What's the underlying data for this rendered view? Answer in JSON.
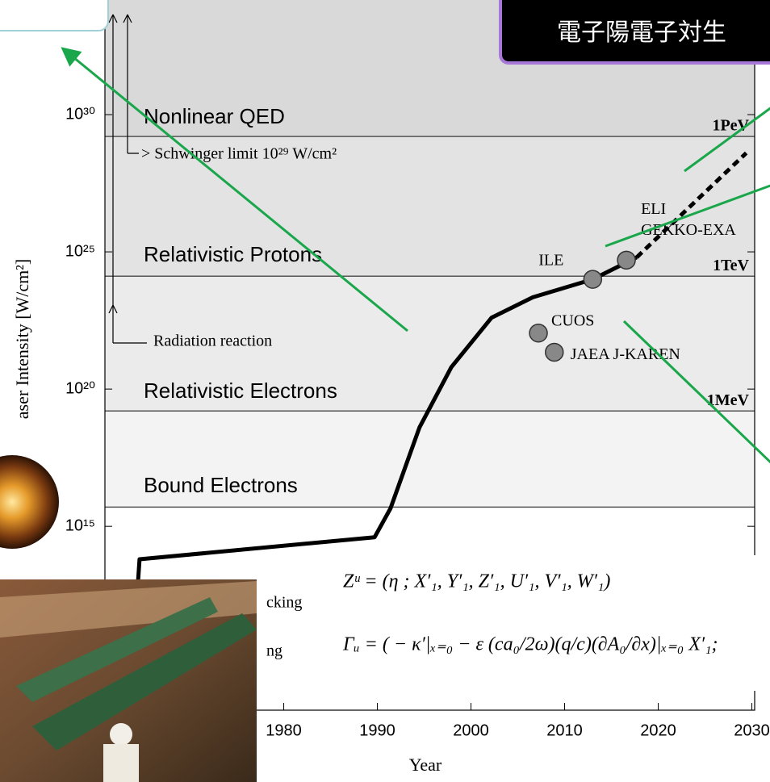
{
  "chart_data": {
    "type": "line",
    "log_y": true,
    "xlabel": "Year",
    "ylabel": "aser Intensity  [W/cm²]",
    "xlim": [
      1960.9,
      2030.3
    ],
    "xticks": [
      1980,
      1990,
      2000,
      2010,
      2020,
      2030
    ],
    "ylim": [
      200000000.0,
      1.5e+34
    ],
    "yticks": [
      {
        "value": 1000000000000000.0,
        "label": "10¹⁵"
      },
      {
        "value": 1e+20,
        "label": "10²⁰"
      },
      {
        "value": 1e+25,
        "label": "10²⁵"
      },
      {
        "value": 1e+30,
        "label": "10³⁰"
      }
    ],
    "boundaries": [
      {
        "value": 1.6e+29,
        "label": "1PeV"
      },
      {
        "value": 1.3e+24,
        "label": "1TeV"
      },
      {
        "value": 1.6e+19,
        "label": "1MeV"
      },
      {
        "value": 5000000000000000.0
      }
    ],
    "regions": [
      "Nonlinear QED",
      "Relativistic Protons",
      "Relativistic Electrons",
      "Bound Electrons"
    ],
    "region_colors": [
      "#d9d9d9",
      "#e3e3e3",
      "#ebebeb",
      "#f3f3f3",
      "#ffffff"
    ],
    "series": [
      {
        "color": "#000000",
        "style": "solid",
        "x": [
          1963.5,
          1964.6,
          1989.7,
          1991.4,
          1994.5,
          1997.9,
          2002.2,
          2006.6,
          2013.0,
          2017.7
        ],
        "values": [
          200000000.0,
          63000000000000.0,
          400000000000000.0,
          4500000000000000.0,
          4e+18,
          6.3e+20,
          4e+22,
          2.2e+23,
          1e+24,
          6.3e+24
        ]
      },
      {
        "color": "#000000",
        "style": "dashed",
        "x": [
          2017.7,
          2029.4
        ],
        "values": [
          6.3e+24,
          4e+28
        ]
      }
    ],
    "points": [
      {
        "lines": [
          "ILE"
        ],
        "x": 2013.0,
        "value": 1e+24
      },
      {
        "lines": [
          "ELI",
          "GEKKO-EXA"
        ],
        "x": 2016.6,
        "value": 5e+24
      },
      {
        "lines": [
          "CUOS"
        ],
        "x": 2007.2,
        "value": 1.1e+22
      },
      {
        "lines": [
          "JAEA J-KAREN"
        ],
        "x": 2008.9,
        "value": 2.2e+21
      }
    ],
    "point_color": "#888888",
    "annotations": [
      "> Schwinger limit 10²⁹ W/cm²",
      "Radiation reaction",
      "cking",
      "ng"
    ],
    "formulas": [
      "Zᵘ = (η ; X′₁, Y′₁, Z′₁, U′₁, V′₁, W′₁)",
      "Γᵤ = ( − κ′|ₓ₌₀ − ε (ca₀/2ω)(q/c)(∂A₀/∂x)|ₓ₌₀  X′₁;"
    ],
    "banner": "電子陽電子対生"
  }
}
